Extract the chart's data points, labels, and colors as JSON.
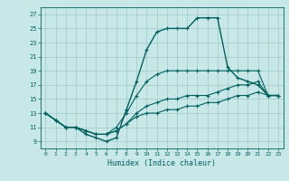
{
  "xlabel": "Humidex (Indice chaleur)",
  "bg_color": "#c8e8e8",
  "grid_color": "#a0c8c8",
  "line_color": "#006060",
  "xlim": [
    -0.5,
    23.5
  ],
  "ylim": [
    8,
    28
  ],
  "xticks": [
    0,
    1,
    2,
    3,
    4,
    5,
    6,
    7,
    8,
    9,
    10,
    11,
    12,
    13,
    14,
    15,
    16,
    17,
    18,
    19,
    20,
    21,
    22,
    23
  ],
  "yticks": [
    9,
    11,
    13,
    15,
    17,
    19,
    21,
    23,
    25,
    27
  ],
  "series": [
    [
      13,
      12,
      11,
      11,
      10,
      9.5,
      9,
      9.5,
      13.5,
      17.5,
      22,
      24.5,
      25,
      25,
      25,
      26.5,
      26.5,
      26.5,
      19.5,
      18,
      17.5,
      17,
      15.5,
      15.5
    ],
    [
      13,
      12,
      11,
      11,
      10.5,
      10,
      10,
      11,
      13,
      15.5,
      17.5,
      18.5,
      19,
      19,
      19,
      19,
      19,
      19,
      19,
      19,
      19,
      19,
      15.5,
      15.5
    ],
    [
      13,
      12,
      11,
      11,
      10.5,
      10,
      10,
      10.5,
      11.5,
      13,
      14,
      14.5,
      15,
      15,
      15.5,
      15.5,
      15.5,
      16,
      16.5,
      17,
      17,
      17.5,
      15.5,
      15.5
    ],
    [
      13,
      12,
      11,
      11,
      10.5,
      10,
      10,
      10.5,
      11.5,
      12.5,
      13,
      13,
      13.5,
      13.5,
      14,
      14,
      14.5,
      14.5,
      15,
      15.5,
      15.5,
      16,
      15.5,
      15.5
    ]
  ]
}
